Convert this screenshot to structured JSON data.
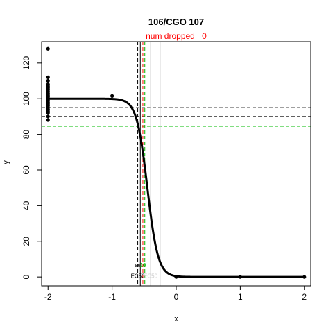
{
  "chart_data": {
    "type": "scatter",
    "title": "106/CGO 107",
    "subtitle": "num dropped= 0",
    "xlabel": "x",
    "ylabel": "y",
    "xlim": [
      -2.1,
      2.1
    ],
    "ylim": [
      -5,
      132
    ],
    "x_ticks": [
      -2,
      -1,
      0,
      1,
      2
    ],
    "y_ticks": [
      0,
      20,
      40,
      60,
      80,
      100,
      120
    ],
    "points": [
      {
        "x": -2,
        "y": 128
      },
      {
        "x": -2,
        "y": 112
      },
      {
        "x": -2,
        "y": 110
      },
      {
        "x": -2,
        "y": 108
      },
      {
        "x": -2,
        "y": 107
      },
      {
        "x": -2,
        "y": 106
      },
      {
        "x": -2,
        "y": 105
      },
      {
        "x": -2,
        "y": 104
      },
      {
        "x": -2,
        "y": 103
      },
      {
        "x": -2,
        "y": 102
      },
      {
        "x": -2,
        "y": 101
      },
      {
        "x": -2,
        "y": 100
      },
      {
        "x": -2,
        "y": 99
      },
      {
        "x": -2,
        "y": 98
      },
      {
        "x": -2,
        "y": 97
      },
      {
        "x": -2,
        "y": 96
      },
      {
        "x": -2,
        "y": 95
      },
      {
        "x": -2,
        "y": 94
      },
      {
        "x": -2,
        "y": 93
      },
      {
        "x": -2,
        "y": 92
      },
      {
        "x": -2,
        "y": 90
      },
      {
        "x": -2,
        "y": 88
      },
      {
        "x": -1,
        "y": 101.5
      },
      {
        "x": 0,
        "y": 0
      },
      {
        "x": 1,
        "y": 0
      },
      {
        "x": 2,
        "y": 0
      }
    ],
    "fit_curve": {
      "top": 100,
      "bottom": 0,
      "ec50": -0.45,
      "hill": 12
    },
    "hlines": [
      {
        "y": 95,
        "color": "#000000",
        "style": "dashed"
      },
      {
        "y": 90,
        "color": "#000000",
        "style": "dashed"
      },
      {
        "y": 84.5,
        "color": "#00bb00",
        "style": "dashed"
      }
    ],
    "vlines": [
      {
        "x": -0.6,
        "color": "#000000",
        "style": "dashed"
      },
      {
        "x": -0.56,
        "color": "#000000",
        "style": "solid"
      },
      {
        "x": -0.52,
        "color": "#ff0000",
        "style": "dashed"
      },
      {
        "x": -0.49,
        "color": "#00bb00",
        "style": "dashed"
      },
      {
        "x": -0.4,
        "color": "#cccccc",
        "style": "solid"
      },
      {
        "x": -0.25,
        "color": "#cccccc",
        "style": "solid"
      }
    ],
    "annotations": [
      {
        "text": "se",
        "x": -0.6,
        "y": 5.5,
        "color": "#000000"
      },
      {
        "text": "10",
        "x": -0.52,
        "y": 5.5,
        "color": "#00bb00"
      },
      {
        "text": "EC50",
        "x": -0.6,
        "y": -0.5,
        "color": "#000000"
      },
      {
        "text": "EC50",
        "x": -0.4,
        "y": -0.5,
        "color": "#cccccc"
      }
    ],
    "grid": false,
    "legend": "none"
  }
}
